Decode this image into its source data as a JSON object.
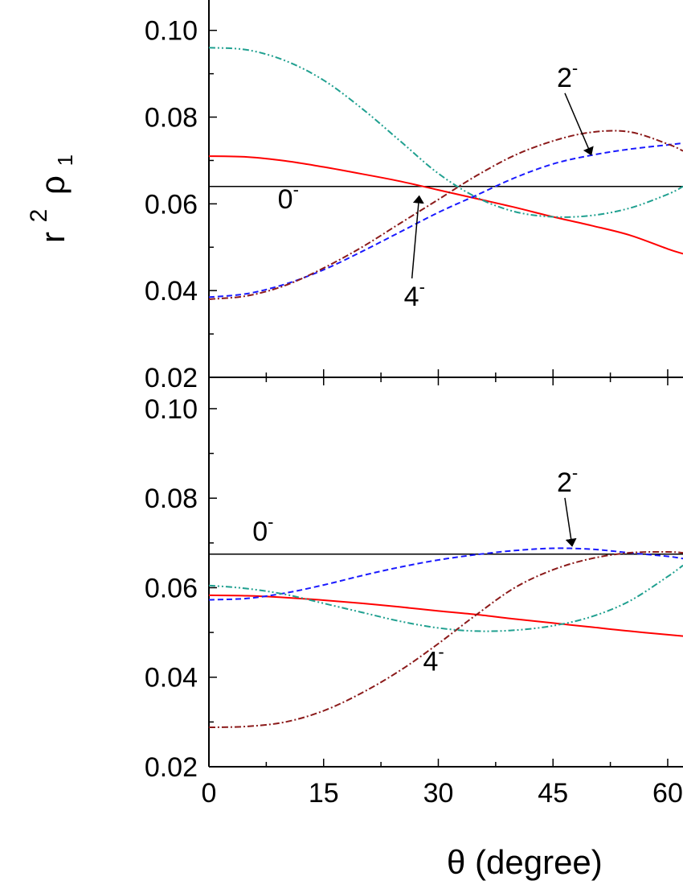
{
  "chart_data": [
    {
      "type": "line",
      "panel": "top",
      "xlim": [
        0,
        62
      ],
      "ylim": [
        0.02,
        0.107
      ],
      "yticks": [
        "0.02",
        "0.04",
        "0.06",
        "0.08",
        "0.10"
      ],
      "series": [
        {
          "name": "0-",
          "color": "#000000",
          "dash": "solid",
          "x": [
            0,
            62
          ],
          "y": [
            0.064,
            0.064
          ]
        },
        {
          "name": "",
          "color": "#ff0000",
          "dash": "solid",
          "x": [
            0,
            5,
            10,
            15,
            20,
            25,
            30,
            35,
            40,
            45,
            50,
            55,
            60,
            62
          ],
          "y": [
            0.071,
            0.0708,
            0.0699,
            0.0685,
            0.0669,
            0.0652,
            0.0632,
            0.0612,
            0.0592,
            0.057,
            0.055,
            0.0528,
            0.0496,
            0.0485
          ]
        },
        {
          "name": "2-",
          "color": "#1a1aff",
          "dash": "dashed",
          "x": [
            0,
            5,
            10,
            15,
            20,
            25,
            30,
            35,
            40,
            45,
            50,
            55,
            60,
            62
          ],
          "y": [
            0.0385,
            0.0393,
            0.0415,
            0.0448,
            0.049,
            0.0535,
            0.058,
            0.062,
            0.066,
            0.0692,
            0.0712,
            0.0726,
            0.0736,
            0.074
          ]
        },
        {
          "name": "4-",
          "color": "#8b1a1a",
          "dash": "dashdot",
          "x": [
            0,
            5,
            10,
            15,
            20,
            25,
            30,
            35,
            40,
            45,
            50,
            55,
            60,
            62
          ],
          "y": [
            0.038,
            0.0388,
            0.0412,
            0.0452,
            0.05,
            0.0555,
            0.061,
            0.0665,
            0.0712,
            0.0745,
            0.0765,
            0.0766,
            0.0738,
            0.0722
          ]
        },
        {
          "name": "",
          "color": "#20a090",
          "dash": "dashdotdot",
          "x": [
            0,
            5,
            10,
            15,
            20,
            25,
            30,
            35,
            40,
            45,
            50,
            55,
            60,
            62
          ],
          "y": [
            0.096,
            0.0955,
            0.093,
            0.0885,
            0.082,
            0.0745,
            0.067,
            0.0615,
            0.0582,
            0.057,
            0.0573,
            0.059,
            0.0622,
            0.064
          ]
        }
      ],
      "annotations": [
        {
          "text": "0",
          "sup": "-",
          "x": 9,
          "y": 0.059
        },
        {
          "text": "2",
          "sup": "-",
          "x": 45.5,
          "y": 0.087,
          "arrow_to": [
            50,
            0.0713
          ]
        },
        {
          "text": "4",
          "sup": "-",
          "x": 25.5,
          "y": 0.0365,
          "arrow_to": [
            27.5,
            0.0618
          ]
        }
      ]
    },
    {
      "type": "line",
      "panel": "bottom",
      "xlim": [
        0,
        62
      ],
      "ylim": [
        0.02,
        0.107
      ],
      "xticks": [
        "0",
        "15",
        "30",
        "45",
        "60"
      ],
      "yticks": [
        "0.02",
        "0.04",
        "0.06",
        "0.08",
        "0.10"
      ],
      "series": [
        {
          "name": "0-",
          "color": "#000000",
          "dash": "solid",
          "x": [
            0,
            62
          ],
          "y": [
            0.0675,
            0.0675
          ]
        },
        {
          "name": "",
          "color": "#ff0000",
          "dash": "solid",
          "x": [
            0,
            5,
            10,
            15,
            20,
            25,
            30,
            35,
            40,
            45,
            50,
            55,
            60,
            62
          ],
          "y": [
            0.0583,
            0.0582,
            0.0578,
            0.0572,
            0.0565,
            0.0557,
            0.0548,
            0.054,
            0.053,
            0.0521,
            0.0512,
            0.0503,
            0.0495,
            0.0492
          ]
        },
        {
          "name": "2-",
          "color": "#1a1aff",
          "dash": "dashed",
          "x": [
            0,
            5,
            10,
            15,
            20,
            25,
            30,
            35,
            40,
            45,
            50,
            55,
            60,
            62
          ],
          "y": [
            0.0573,
            0.0576,
            0.0588,
            0.0606,
            0.0627,
            0.0646,
            0.0662,
            0.0674,
            0.0683,
            0.0688,
            0.0686,
            0.0678,
            0.067,
            0.0665
          ]
        },
        {
          "name": "4-",
          "color": "#8b1a1a",
          "dash": "dashdot",
          "x": [
            0,
            5,
            10,
            15,
            20,
            25,
            30,
            35,
            40,
            45,
            50,
            55,
            60,
            62
          ],
          "y": [
            0.0288,
            0.029,
            0.03,
            0.0325,
            0.0365,
            0.0415,
            0.0475,
            0.054,
            0.06,
            0.064,
            0.0665,
            0.0678,
            0.068,
            0.0678
          ]
        },
        {
          "name": "",
          "color": "#20a090",
          "dash": "dashdotdot",
          "x": [
            0,
            5,
            10,
            15,
            20,
            25,
            30,
            35,
            40,
            45,
            50,
            55,
            60,
            62
          ],
          "y": [
            0.0605,
            0.0598,
            0.0585,
            0.0565,
            0.0545,
            0.0525,
            0.051,
            0.0503,
            0.0505,
            0.0515,
            0.0535,
            0.057,
            0.0625,
            0.065
          ]
        }
      ],
      "annotations": [
        {
          "text": "0",
          "sup": "-",
          "x": 5.7,
          "y": 0.0705
        },
        {
          "text": "2",
          "sup": "-",
          "x": 45.5,
          "y": 0.0815,
          "arrow_to": [
            47.5,
            0.0693
          ]
        },
        {
          "text": "4",
          "sup": "-",
          "x": 28,
          "y": 0.0415
        }
      ]
    }
  ],
  "xlabel": "θ (degree)",
  "ylabel": {
    "base": "r",
    "sup": "2",
    "rho": "ρ",
    "sub": "1"
  }
}
